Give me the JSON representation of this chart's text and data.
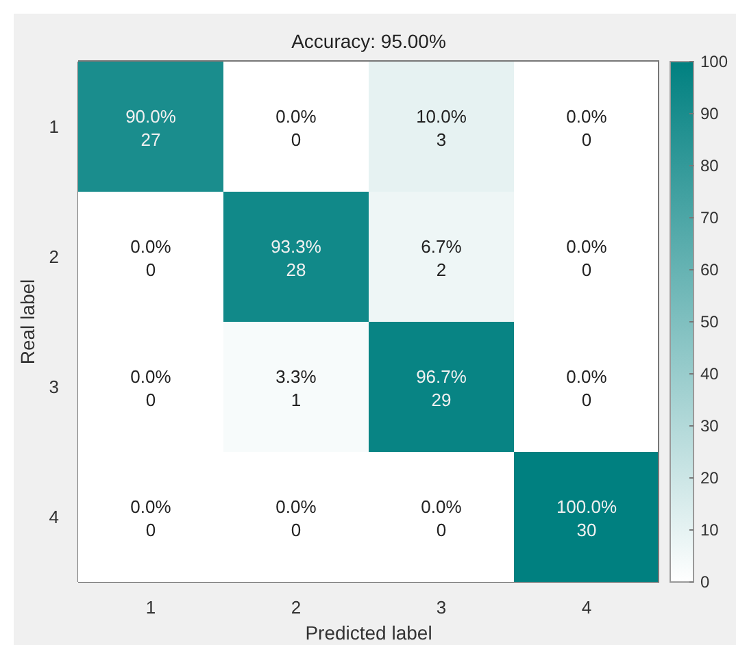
{
  "chart_data": {
    "type": "heatmap",
    "title": "Accuracy: 95.00%",
    "xlabel": "Predicted label",
    "ylabel": "Real label",
    "categories": [
      "1",
      "2",
      "3",
      "4"
    ],
    "y_categories": [
      "1",
      "2",
      "3",
      "4"
    ],
    "cells": [
      [
        90,
        0,
        10,
        0
      ],
      [
        0,
        93.3,
        6.7,
        0
      ],
      [
        0,
        3.3,
        96.7,
        0
      ],
      [
        0,
        0,
        0,
        100
      ]
    ],
    "cell_labels": [
      [
        "90.0%\n27",
        "0.0%\n0",
        "10.0%\n3",
        "0.0%\n0"
      ],
      [
        "0.0%\n0",
        "93.3%\n28",
        "6.7%\n2",
        "0.0%\n0"
      ],
      [
        "0.0%\n0",
        "3.3%\n1",
        "96.7%\n29",
        "0.0%\n0"
      ],
      [
        "0.0%\n0",
        "0.0%\n0",
        "0.0%\n0",
        "100.0%\n30"
      ]
    ],
    "color": "#008080",
    "clim": [
      0,
      100
    ],
    "cticks": [
      0,
      10,
      20,
      30,
      40,
      50,
      60,
      70,
      80,
      90,
      100
    ]
  }
}
